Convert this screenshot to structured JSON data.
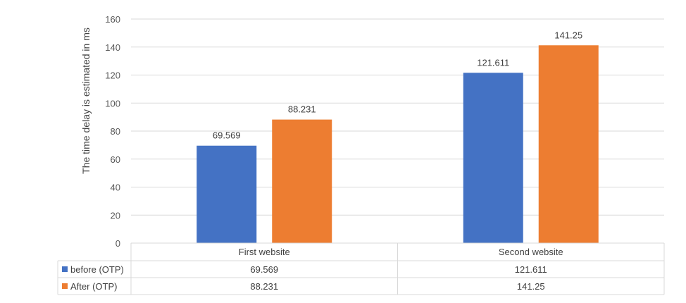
{
  "chart_data": {
    "type": "bar",
    "title": "",
    "xlabel": "",
    "ylabel": "The time delay is estimated in ms",
    "ylim": [
      0,
      160
    ],
    "yticks": [
      0,
      20,
      40,
      60,
      80,
      100,
      120,
      140,
      160
    ],
    "grid": true,
    "legend": "data-table",
    "categories": [
      "First website",
      "Second website"
    ],
    "series": [
      {
        "name": "before (OTP)",
        "color": "#4472c4",
        "values": [
          69.569,
          121.611
        ],
        "labels": [
          "69.569",
          "121.611"
        ]
      },
      {
        "name": "After (OTP)",
        "color": "#ed7d31",
        "values": [
          88.231,
          141.25
        ],
        "labels": [
          "88.231",
          "141.25"
        ]
      }
    ]
  }
}
